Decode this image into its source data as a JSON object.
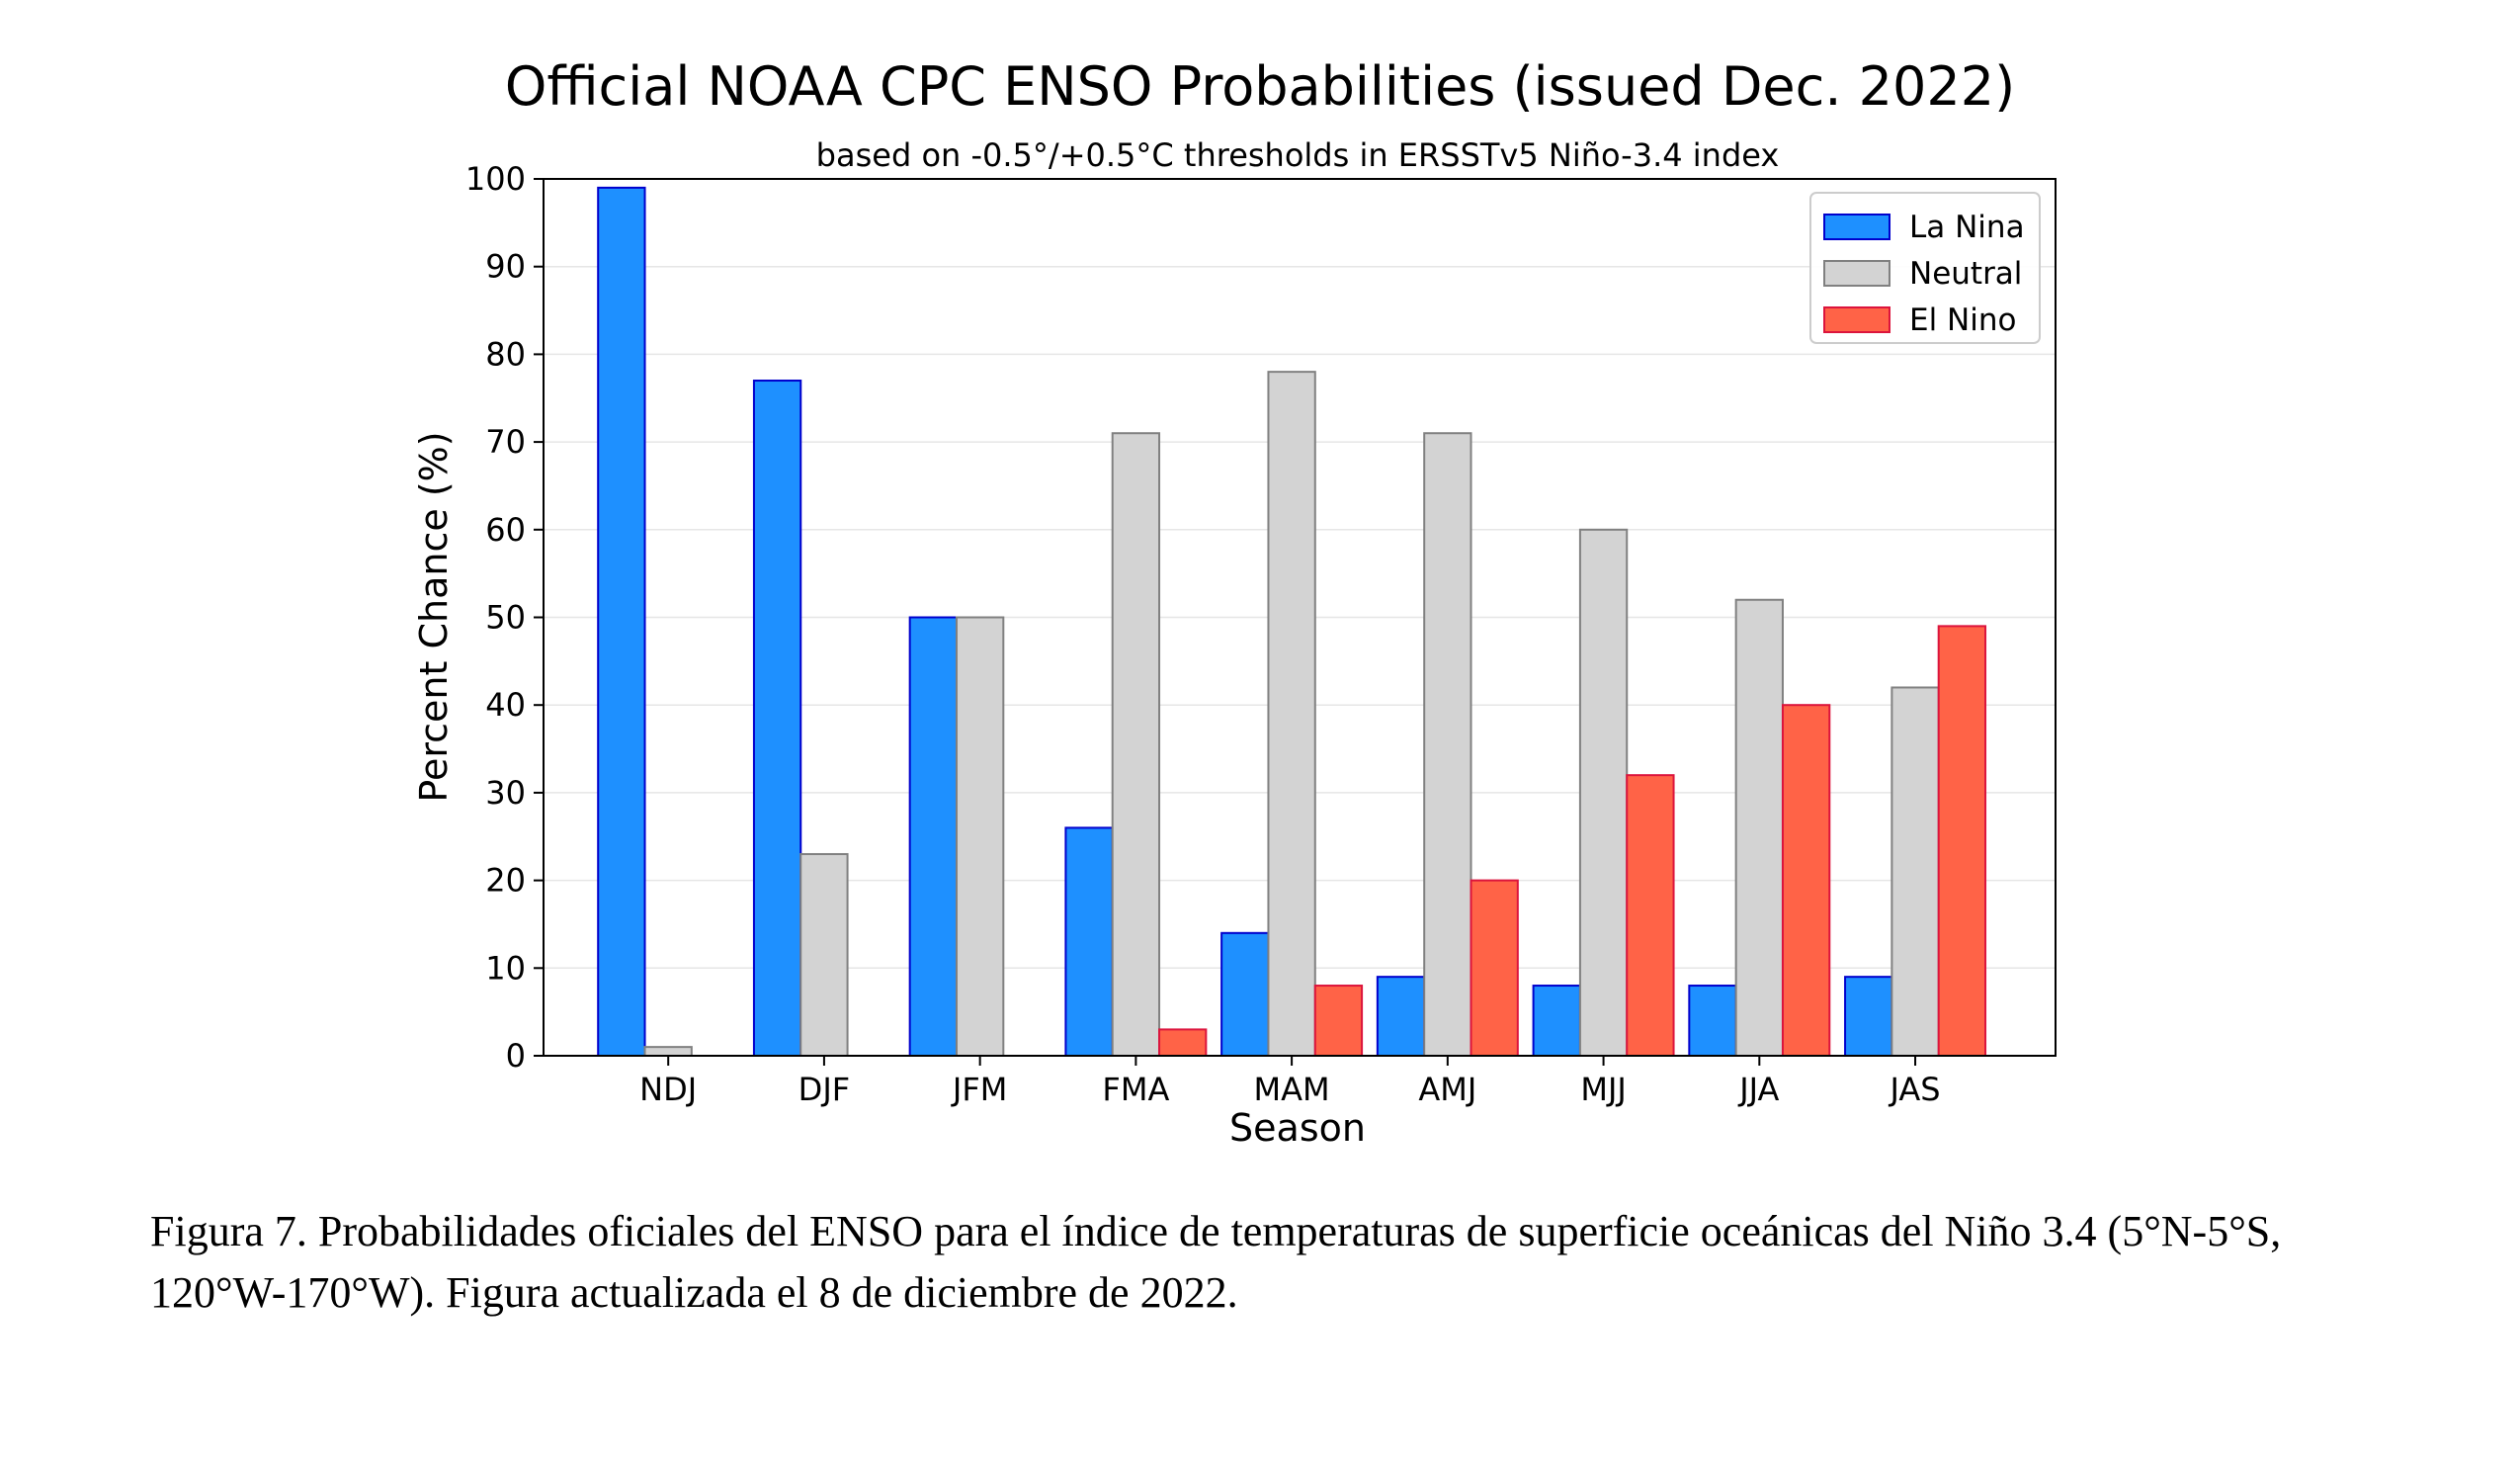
{
  "chart_data": {
    "type": "bar",
    "title": "Official NOAA CPC ENSO Probabilities (issued Dec. 2022)",
    "subtitle": "based on -0.5°/+0.5°C thresholds in ERSSTv5 Niño-3.4 index",
    "xlabel": "Season",
    "ylabel": "Percent Chance (%)",
    "ylim": [
      0,
      100
    ],
    "yticks": [
      "0",
      "10",
      "20",
      "30",
      "40",
      "50",
      "60",
      "70",
      "80",
      "90",
      "100"
    ],
    "categories": [
      "NDJ",
      "DJF",
      "JFM",
      "FMA",
      "MAM",
      "AMJ",
      "MJJ",
      "JJA",
      "JAS"
    ],
    "grid": "horizontal",
    "legend_position": "top-right",
    "series": [
      {
        "name": "La Nina",
        "color": "#1E90FF",
        "edge": "#0000CD",
        "values": [
          99,
          77,
          50,
          26,
          14,
          9,
          8,
          8,
          9
        ]
      },
      {
        "name": "Neutral",
        "color": "#D3D3D3",
        "edge": "#808080",
        "values": [
          1,
          23,
          50,
          71,
          78,
          71,
          60,
          52,
          42
        ]
      },
      {
        "name": "El Nino",
        "color": "#FF6347",
        "edge": "#DC143C",
        "values": [
          0,
          0,
          0,
          3,
          8,
          20,
          32,
          40,
          49
        ]
      }
    ]
  },
  "caption": "Figura 7. Probabilidades oficiales del ENSO para el índice de temperaturas de superficie oceánicas del Niño 3.4 (5°N-5°S, 120°W-170°W). Figura actualizada el 8 de diciembre de 2022."
}
